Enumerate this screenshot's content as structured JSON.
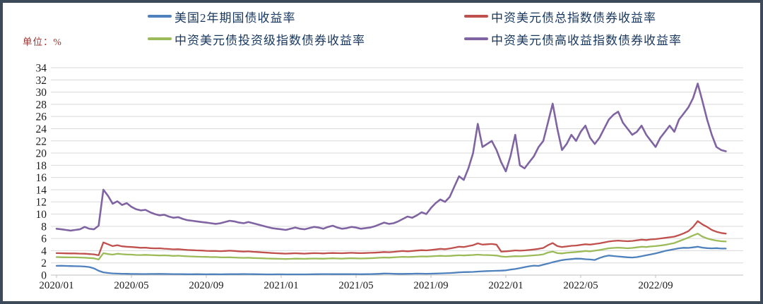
{
  "unit_label": "单位：%",
  "legend": [
    {
      "label": "美国2年期国债收益率",
      "color": "#4f81bd"
    },
    {
      "label": "中资美元债总指数债券收益率",
      "color": "#c0504d"
    },
    {
      "label": "中资美元债投资级指数债券收益率",
      "color": "#9bbb59"
    },
    {
      "label": "中资美元债高收益指数债券收益率",
      "color": "#8064a2"
    }
  ],
  "colors": {
    "grid": "#d9d9d9",
    "axis": "#bfbfbf",
    "frame_border": "#3c4a59",
    "legend_text": "#17375e",
    "unit_text": "#963634"
  },
  "chart_data": {
    "type": "line",
    "title": "",
    "xlabel": "",
    "ylabel": "单位：%",
    "grid": true,
    "legend_position": "top",
    "ylim": [
      0,
      34
    ],
    "y_tick_step": 2,
    "y_ticks": [
      0,
      2,
      4,
      6,
      8,
      10,
      12,
      14,
      16,
      18,
      20,
      22,
      24,
      26,
      28,
      30,
      32,
      34
    ],
    "x_unit": "month index, 0 = 2020/01",
    "x_ticks": [
      {
        "pos": 0,
        "label": "2020/01"
      },
      {
        "pos": 4,
        "label": "2020/05"
      },
      {
        "pos": 8,
        "label": "2020/09"
      },
      {
        "pos": 12,
        "label": "2021/01"
      },
      {
        "pos": 16,
        "label": "2021/05"
      },
      {
        "pos": 20,
        "label": "2021/09"
      },
      {
        "pos": 24,
        "label": "2022/01"
      },
      {
        "pos": 28,
        "label": "2022/05"
      },
      {
        "pos": 32,
        "label": "2022/09"
      }
    ],
    "series": [
      {
        "name": "美国2年期国债收益率",
        "color": "#4f81bd",
        "x_start": 0,
        "x_step": 0.25,
        "values": [
          1.52,
          1.53,
          1.5,
          1.48,
          1.46,
          1.44,
          1.4,
          1.32,
          1.1,
          0.7,
          0.45,
          0.35,
          0.28,
          0.24,
          0.22,
          0.21,
          0.19,
          0.18,
          0.17,
          0.17,
          0.18,
          0.19,
          0.2,
          0.19,
          0.17,
          0.16,
          0.16,
          0.15,
          0.14,
          0.14,
          0.15,
          0.14,
          0.13,
          0.14,
          0.14,
          0.13,
          0.14,
          0.15,
          0.16,
          0.15,
          0.17,
          0.16,
          0.15,
          0.14,
          0.13,
          0.12,
          0.12,
          0.13,
          0.13,
          0.12,
          0.11,
          0.11,
          0.11,
          0.12,
          0.13,
          0.14,
          0.15,
          0.16,
          0.16,
          0.15,
          0.16,
          0.15,
          0.16,
          0.15,
          0.15,
          0.14,
          0.15,
          0.16,
          0.18,
          0.21,
          0.25,
          0.24,
          0.22,
          0.2,
          0.2,
          0.21,
          0.22,
          0.24,
          0.23,
          0.22,
          0.23,
          0.26,
          0.28,
          0.3,
          0.33,
          0.38,
          0.45,
          0.48,
          0.5,
          0.52,
          0.58,
          0.62,
          0.66,
          0.68,
          0.7,
          0.73,
          0.78,
          0.9,
          1.0,
          1.15,
          1.3,
          1.45,
          1.55,
          1.5,
          1.7,
          1.9,
          2.1,
          2.28,
          2.45,
          2.55,
          2.62,
          2.7,
          2.68,
          2.6,
          2.55,
          2.48,
          2.8,
          3.05,
          3.2,
          3.12,
          3.05,
          2.98,
          2.92,
          2.88,
          2.95,
          3.1,
          3.25,
          3.4,
          3.55,
          3.75,
          3.95,
          4.1,
          4.25,
          4.4,
          4.48,
          4.45,
          4.55,
          4.65,
          4.5,
          4.42,
          4.38,
          4.42,
          4.35,
          4.35
        ]
      },
      {
        "name": "中资美元债总指数债券收益率",
        "color": "#c0504d",
        "x_start": 0,
        "x_step": 0.25,
        "values": [
          3.6,
          3.58,
          3.56,
          3.55,
          3.55,
          3.52,
          3.5,
          3.45,
          3.4,
          3.25,
          5.35,
          5.05,
          4.75,
          4.9,
          4.72,
          4.65,
          4.6,
          4.55,
          4.48,
          4.5,
          4.42,
          4.38,
          4.4,
          4.32,
          4.28,
          4.22,
          4.25,
          4.18,
          4.12,
          4.08,
          4.05,
          4.02,
          3.98,
          3.95,
          3.96,
          3.92,
          3.95,
          4.0,
          3.95,
          3.9,
          3.85,
          3.88,
          3.82,
          3.78,
          3.72,
          3.68,
          3.62,
          3.58,
          3.55,
          3.52,
          3.55,
          3.58,
          3.55,
          3.52,
          3.56,
          3.6,
          3.58,
          3.55,
          3.6,
          3.62,
          3.6,
          3.58,
          3.62,
          3.65,
          3.62,
          3.6,
          3.62,
          3.65,
          3.68,
          3.72,
          3.78,
          3.75,
          3.8,
          3.88,
          3.95,
          3.9,
          3.95,
          4.02,
          4.08,
          4.05,
          4.12,
          4.2,
          4.3,
          4.25,
          4.35,
          4.5,
          4.65,
          4.6,
          4.75,
          4.9,
          5.2,
          5.0,
          5.05,
          5.1,
          5.0,
          3.85,
          3.9,
          3.95,
          4.05,
          4.0,
          4.05,
          4.12,
          4.2,
          4.3,
          4.45,
          4.9,
          5.25,
          4.75,
          4.6,
          4.7,
          4.8,
          4.85,
          4.95,
          5.05,
          5.0,
          5.1,
          5.2,
          5.35,
          5.5,
          5.6,
          5.65,
          5.6,
          5.55,
          5.6,
          5.7,
          5.8,
          5.75,
          5.85,
          5.9,
          6.0,
          6.1,
          6.2,
          6.3,
          6.55,
          6.85,
          7.2,
          7.9,
          8.85,
          8.3,
          7.9,
          7.4,
          7.1,
          6.9,
          6.8
        ]
      },
      {
        "name": "中资美元债投资级指数债券收益率",
        "color": "#9bbb59",
        "x_start": 0,
        "x_step": 0.25,
        "values": [
          2.95,
          2.93,
          2.92,
          2.9,
          2.9,
          2.88,
          2.85,
          2.8,
          2.75,
          2.55,
          3.6,
          3.45,
          3.35,
          3.5,
          3.42,
          3.38,
          3.35,
          3.3,
          3.28,
          3.32,
          3.28,
          3.25,
          3.22,
          3.24,
          3.2,
          3.15,
          3.18,
          3.12,
          3.08,
          3.05,
          3.02,
          3.0,
          2.98,
          2.95,
          2.96,
          2.92,
          2.9,
          2.92,
          2.88,
          2.85,
          2.82,
          2.85,
          2.8,
          2.78,
          2.75,
          2.72,
          2.7,
          2.68,
          2.66,
          2.64,
          2.66,
          2.7,
          2.68,
          2.66,
          2.7,
          2.72,
          2.7,
          2.68,
          2.72,
          2.75,
          2.72,
          2.7,
          2.74,
          2.76,
          2.74,
          2.72,
          2.74,
          2.76,
          2.8,
          2.84,
          2.88,
          2.86,
          2.9,
          2.95,
          3.0,
          2.96,
          2.98,
          3.02,
          3.06,
          3.04,
          3.08,
          3.12,
          3.16,
          3.12,
          3.15,
          3.2,
          3.25,
          3.22,
          3.26,
          3.3,
          3.35,
          3.3,
          3.28,
          3.25,
          3.2,
          3.05,
          3.0,
          3.05,
          3.1,
          3.08,
          3.12,
          3.18,
          3.24,
          3.3,
          3.4,
          3.7,
          3.85,
          3.6,
          3.55,
          3.65,
          3.72,
          3.78,
          3.85,
          3.95,
          3.9,
          4.0,
          4.1,
          4.25,
          4.4,
          4.45,
          4.5,
          4.45,
          4.4,
          4.45,
          4.55,
          4.65,
          4.6,
          4.7,
          4.75,
          4.85,
          4.95,
          5.1,
          5.25,
          5.55,
          5.85,
          6.15,
          6.5,
          6.8,
          6.3,
          6.0,
          5.8,
          5.65,
          5.55,
          5.5
        ]
      },
      {
        "name": "中资美元债高收益指数债券收益率",
        "color": "#8064a2",
        "x_start": 0,
        "x_step": 0.25,
        "values": [
          7.6,
          7.5,
          7.4,
          7.3,
          7.4,
          7.5,
          7.9,
          7.6,
          7.5,
          8.1,
          14.0,
          13.0,
          11.7,
          12.1,
          11.5,
          11.8,
          11.2,
          10.8,
          10.6,
          10.7,
          10.3,
          10.0,
          9.8,
          9.9,
          9.6,
          9.4,
          9.5,
          9.2,
          9.0,
          8.9,
          8.8,
          8.7,
          8.6,
          8.5,
          8.4,
          8.5,
          8.7,
          8.9,
          8.8,
          8.6,
          8.5,
          8.7,
          8.5,
          8.3,
          8.1,
          7.9,
          7.7,
          7.6,
          7.5,
          7.4,
          7.6,
          7.8,
          7.6,
          7.5,
          7.7,
          7.9,
          7.8,
          7.6,
          7.9,
          8.1,
          7.8,
          7.6,
          7.7,
          7.9,
          7.8,
          7.6,
          7.7,
          7.8,
          8.0,
          8.3,
          8.6,
          8.4,
          8.5,
          8.8,
          9.2,
          9.6,
          9.4,
          9.8,
          10.3,
          10.0,
          11.0,
          11.8,
          12.4,
          12.0,
          12.8,
          14.5,
          16.2,
          15.6,
          17.5,
          20.0,
          24.8,
          21.0,
          21.5,
          22.0,
          20.5,
          18.5,
          17.0,
          19.5,
          23.0,
          18.0,
          17.5,
          18.5,
          19.5,
          21.0,
          22.0,
          25.0,
          28.1,
          24.0,
          20.5,
          21.5,
          23.0,
          22.0,
          23.5,
          24.5,
          22.5,
          21.5,
          22.5,
          24.0,
          25.5,
          26.3,
          26.8,
          25.0,
          24.0,
          23.0,
          23.5,
          24.5,
          23.0,
          22.0,
          21.0,
          22.5,
          23.5,
          24.5,
          23.5,
          25.5,
          26.5,
          27.5,
          29.0,
          31.4,
          28.5,
          25.5,
          23.0,
          21.0,
          20.5,
          20.3
        ]
      }
    ]
  }
}
